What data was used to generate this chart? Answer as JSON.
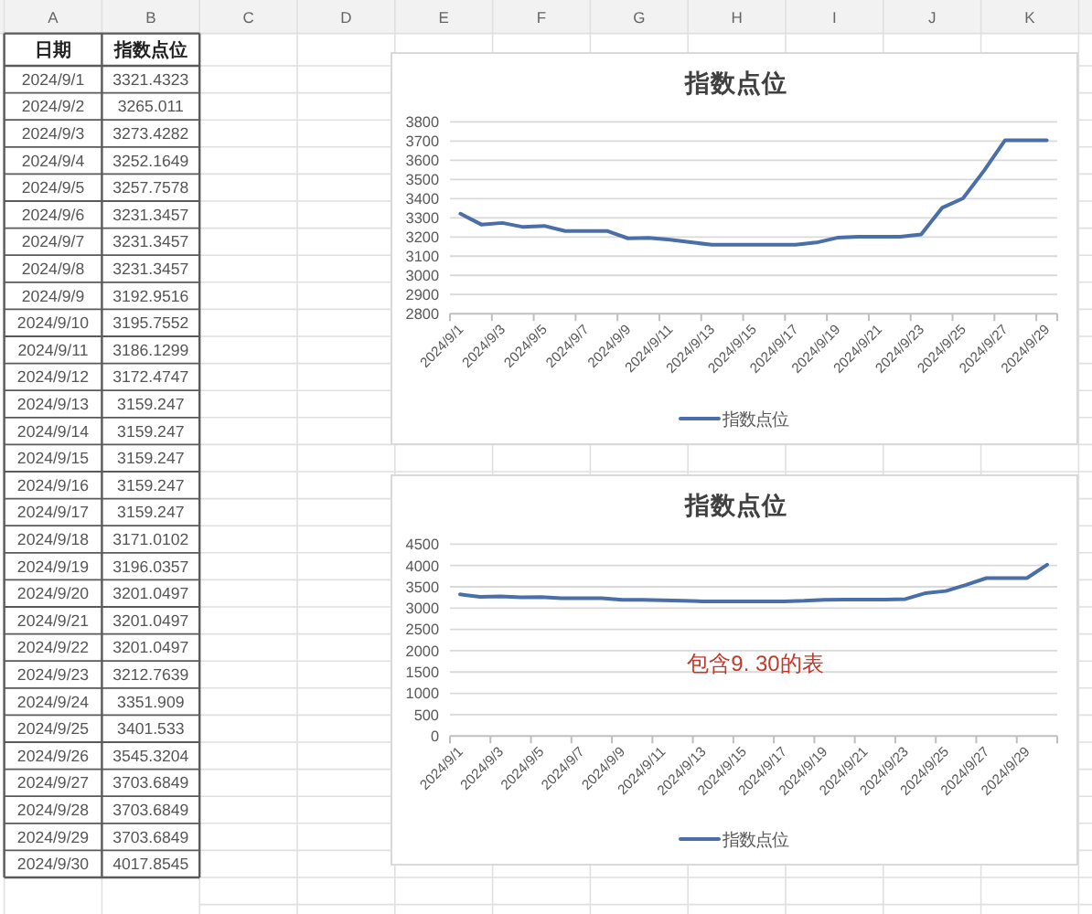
{
  "chart_data": [
    {
      "type": "other",
      "xlabel": "日期",
      "annotations": [
        "A",
        "B",
        "C",
        "D",
        "E",
        "F",
        "G",
        "H",
        "I",
        "J",
        "K"
      ],
      "data_labels": true,
      "categories": [
        "2024/9/1",
        "2024/9/2",
        "2024/9/3",
        "2024/9/4",
        "2024/9/5",
        "2024/9/6",
        "2024/9/7",
        "2024/9/8",
        "2024/9/9",
        "2024/9/10",
        "2024/9/11",
        "2024/9/12",
        "2024/9/13",
        "2024/9/14",
        "2024/9/15",
        "2024/9/16",
        "2024/9/17",
        "2024/9/18",
        "2024/9/19",
        "2024/9/20",
        "2024/9/21",
        "2024/9/22",
        "2024/9/23",
        "2024/9/24",
        "2024/9/25",
        "2024/9/26",
        "2024/9/27",
        "2024/9/28",
        "2024/9/29",
        "2024/9/30"
      ],
      "series": [
        {
          "name": "指数点位",
          "values": [
            3321.4323,
            3265.011,
            3273.4282,
            3252.1649,
            3257.7578,
            3231.3457,
            3231.3457,
            3231.3457,
            3192.9516,
            3195.7552,
            3186.1299,
            3172.4747,
            3159.247,
            3159.247,
            3159.247,
            3159.247,
            3159.247,
            3171.0102,
            3196.0357,
            3201.0497,
            3201.0497,
            3201.0497,
            3212.7639,
            3351.909,
            3401.533,
            3545.3204,
            3703.6849,
            3703.6849,
            3703.6849,
            4017.8545
          ]
        }
      ]
    },
    {
      "type": "line",
      "title": "指数点位",
      "grid": "y",
      "legend": "bottom",
      "ylim": [
        2800,
        3800
      ],
      "yticks": [
        2800,
        2900,
        3000,
        3100,
        3200,
        3300,
        3400,
        3500,
        3600,
        3700,
        3800
      ],
      "categories": [
        "2024/9/1",
        null,
        "2024/9/3",
        null,
        "2024/9/5",
        null,
        "2024/9/7",
        null,
        "2024/9/9",
        null,
        "2024/9/11",
        null,
        "2024/9/13",
        null,
        "2024/9/15",
        null,
        "2024/9/17",
        null,
        "2024/9/19",
        null,
        "2024/9/21",
        null,
        "2024/9/23",
        null,
        "2024/9/25",
        null,
        "2024/9/27",
        null,
        "2024/9/29"
      ],
      "series": [
        {
          "name": "指数点位",
          "color": "#4a6ea8",
          "values": [
            3321.4323,
            3265.011,
            3273.4282,
            3252.1649,
            3257.7578,
            3231.3457,
            3231.3457,
            3231.3457,
            3192.9516,
            3195.7552,
            3186.1299,
            3172.4747,
            3159.247,
            3159.247,
            3159.247,
            3159.247,
            3159.247,
            3171.0102,
            3196.0357,
            3201.0497,
            3201.0497,
            3201.0497,
            3212.7639,
            3351.909,
            3401.533,
            3545.3204,
            3703.6849,
            3703.6849,
            3703.6849
          ]
        }
      ]
    },
    {
      "type": "line",
      "title": "指数点位",
      "grid": "y",
      "legend": "bottom",
      "ylim": [
        0,
        4500
      ],
      "yticks": [
        0,
        500,
        1000,
        1500,
        2000,
        2500,
        3000,
        3500,
        4000,
        4500
      ],
      "annotations": [
        "包含9. 30的表"
      ],
      "categories": [
        "2024/9/1",
        null,
        "2024/9/3",
        null,
        "2024/9/5",
        null,
        "2024/9/7",
        null,
        "2024/9/9",
        null,
        "2024/9/11",
        null,
        "2024/9/13",
        null,
        "2024/9/15",
        null,
        "2024/9/17",
        null,
        "2024/9/19",
        null,
        "2024/9/21",
        null,
        "2024/9/23",
        null,
        "2024/9/25",
        null,
        "2024/9/27",
        null,
        "2024/9/29",
        null
      ],
      "series": [
        {
          "name": "指数点位",
          "color": "#4a6ea8",
          "values": [
            3321.4323,
            3265.011,
            3273.4282,
            3252.1649,
            3257.7578,
            3231.3457,
            3231.3457,
            3231.3457,
            3192.9516,
            3195.7552,
            3186.1299,
            3172.4747,
            3159.247,
            3159.247,
            3159.247,
            3159.247,
            3159.247,
            3171.0102,
            3196.0357,
            3201.0497,
            3201.0497,
            3201.0497,
            3212.7639,
            3351.909,
            3401.533,
            3545.3204,
            3703.6849,
            3703.6849,
            3703.6849,
            4017.8545
          ]
        }
      ]
    }
  ]
}
